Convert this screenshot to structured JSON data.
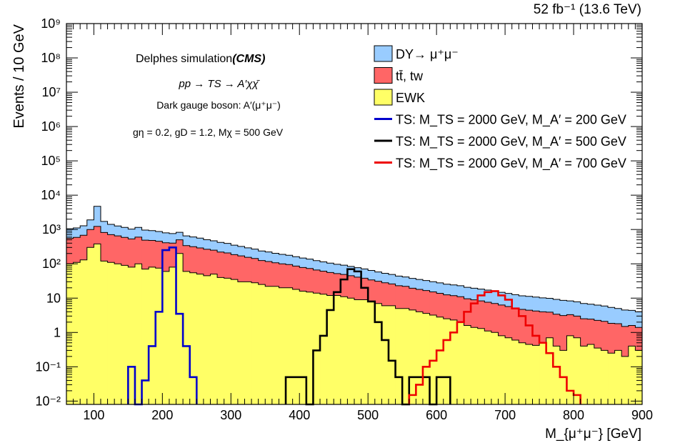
{
  "chart_data": {
    "type": "histogram",
    "lumi_label": "52 fb⁻¹ (13.6 TeV)",
    "xlabel": "M_{μ⁺μ⁻} [GeV]",
    "ylabel": "Events / 10 GeV",
    "xlim": [
      60,
      900
    ],
    "ylim_log": [
      0.008,
      1000000000
    ],
    "bin_width": 10,
    "x_ticks": [
      100,
      200,
      300,
      400,
      500,
      600,
      700,
      800,
      900
    ],
    "y_ticks": [
      {
        "value": 0.01,
        "label": "10⁻²"
      },
      {
        "value": 0.1,
        "label": "10⁻¹"
      },
      {
        "value": 1,
        "label": "1"
      },
      {
        "value": 10,
        "label": "10"
      },
      {
        "value": 100,
        "label": "10²"
      },
      {
        "value": 1000,
        "label": "10³"
      },
      {
        "value": 10000,
        "label": "10⁴"
      },
      {
        "value": 100000,
        "label": "10⁵"
      },
      {
        "value": 1000000,
        "label": "10⁶"
      },
      {
        "value": 10000000,
        "label": "10⁷"
      },
      {
        "value": 100000000,
        "label": "10⁸"
      },
      {
        "value": 1000000000,
        "label": "10⁹"
      }
    ],
    "annotations": {
      "title_plain": "Delphes simulation",
      "title_bold": "(CMS)",
      "process": "pp → TS → A′χχ̄",
      "boson": "Dark gauge boson: A′(μ⁺μ⁻)",
      "couplings": "gη = 0.2, gD = 1.2, Mχ = 500 GeV"
    },
    "stack": [
      {
        "name": "EWK",
        "legend": "EWK",
        "color": "#ffff66",
        "x_start": 60,
        "values": [
          100,
          110,
          130,
          300,
          380,
          120,
          110,
          100,
          90,
          80,
          100,
          70,
          80,
          75,
          60,
          80,
          200,
          60,
          55,
          50,
          45,
          50,
          40,
          38,
          35,
          30,
          30,
          28,
          25,
          22,
          22,
          20,
          20,
          18,
          16,
          15,
          14,
          13,
          12,
          12,
          11,
          10,
          9,
          9,
          8,
          7,
          6,
          6,
          5,
          5,
          4.5,
          4,
          3.6,
          3.2,
          2.8,
          2.5,
          2.3,
          2,
          1.6,
          1.4,
          1.3,
          1.1,
          1,
          0.8,
          0.7,
          0.6,
          0.5,
          0.45,
          0.42,
          0.5,
          0.7,
          0.4,
          0.3,
          0.8,
          0.7,
          0.4,
          0.45,
          0.35,
          0.3,
          0.25,
          0.3,
          0.2,
          0.4,
          0.3
        ]
      },
      {
        "name": "ttbar_tw",
        "legend": "tt̄, tw",
        "color": "#ff6666",
        "x_start": 60,
        "values": [
          450,
          480,
          550,
          700,
          850,
          700,
          600,
          550,
          500,
          450,
          500,
          420,
          400,
          380,
          350,
          320,
          300,
          280,
          260,
          240,
          220,
          200,
          180,
          170,
          150,
          140,
          125,
          115,
          100,
          95,
          85,
          80,
          75,
          68,
          62,
          58,
          52,
          48,
          44,
          40,
          38,
          35,
          32,
          29,
          26,
          24,
          22,
          20,
          18,
          17,
          15,
          14,
          13,
          12,
          11,
          10,
          9.5,
          9,
          8,
          7.5,
          7,
          6.5,
          6,
          5.5,
          5,
          4.5,
          4.2,
          4,
          3.8,
          3.5,
          3.2,
          3,
          2.8,
          2.5,
          2.3,
          2.1,
          2,
          1.9,
          1.8,
          1.6,
          1.5,
          1.3,
          1.2,
          1.1
        ]
      },
      {
        "name": "DY",
        "legend": "DY→ μ⁺μ⁻",
        "color": "#99ccff",
        "x_start": 60,
        "values": [
          500,
          520,
          600,
          900,
          3500,
          900,
          700,
          620,
          560,
          500,
          550,
          470,
          450,
          420,
          390,
          360,
          330,
          310,
          290,
          270,
          240,
          220,
          200,
          185,
          165,
          152,
          137,
          126,
          112,
          104,
          95,
          88,
          82,
          75,
          69,
          64,
          58,
          53,
          49,
          45,
          42,
          39,
          36,
          33,
          30,
          27,
          25,
          23,
          21,
          19.5,
          18,
          17,
          16,
          15,
          14,
          13,
          12.5,
          12,
          11,
          10.5,
          10,
          9.5,
          9,
          8.5,
          8,
          7.5,
          7,
          6.8,
          6.5,
          6.2,
          6,
          5.8,
          5.5,
          5,
          4.8,
          4.5,
          4.2,
          4,
          3.8,
          3.5,
          3.2,
          3,
          2.8,
          2.6
        ]
      }
    ],
    "signals": [
      {
        "name": "TS_200",
        "legend": "TS: M_TS = 2000 GeV, M_A′ = 200 GeV",
        "color": "#0000cc",
        "x_start": 150,
        "values": [
          0.1,
          0.005,
          0.04,
          0.4,
          4,
          250,
          300,
          3.5,
          0.4,
          0.05
        ]
      },
      {
        "name": "TS_500",
        "legend": "TS: M_TS = 2000 GeV, M_A′ = 500 GeV",
        "color": "#000000",
        "x_start": 380,
        "values": [
          0.05,
          0.05,
          0.05,
          0.005,
          0.3,
          0.8,
          4.5,
          15,
          35,
          70,
          60,
          20,
          8,
          2,
          0.6,
          0.15,
          0.05,
          0.005,
          0.05,
          0.05,
          0.05,
          0.005,
          0.05,
          0.05
        ]
      },
      {
        "name": "TS_700",
        "legend": "TS: M_TS = 2000 GeV, M_A′ = 700 GeV",
        "color": "#ee0000",
        "x_start": 560,
        "values": [
          0.015,
          0.03,
          0.1,
          0.15,
          0.3,
          0.6,
          1,
          2,
          4,
          7,
          12,
          15,
          16,
          12,
          9,
          5,
          3,
          1.6,
          0.8,
          0.5,
          0.25,
          0.1,
          0.05,
          0.02,
          0.015
        ]
      }
    ]
  }
}
